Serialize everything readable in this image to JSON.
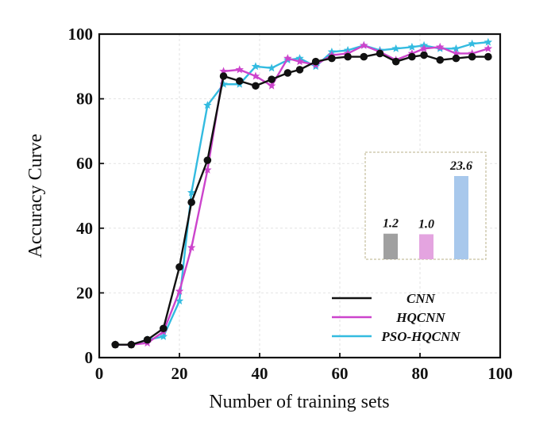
{
  "chart_data": {
    "type": "line",
    "title": "",
    "xlabel": "Number of training sets",
    "ylabel": "Accuracy Curve",
    "xlim": [
      0,
      100
    ],
    "ylim": [
      0,
      100
    ],
    "xticks": [
      0,
      20,
      40,
      60,
      80,
      100
    ],
    "yticks": [
      0,
      20,
      40,
      60,
      80,
      100
    ],
    "grid": true,
    "legend_position": "bottom-right",
    "series": [
      {
        "name": "CNN",
        "color": "#111111",
        "marker": "circle",
        "x": [
          4,
          8,
          12,
          16,
          20,
          23,
          27,
          31,
          35,
          39,
          43,
          47,
          50,
          54,
          58,
          62,
          66,
          70,
          74,
          78,
          81,
          85,
          89,
          93,
          97
        ],
        "y": [
          4,
          4,
          5.5,
          9,
          28,
          48,
          61,
          87,
          85.5,
          84,
          86,
          88,
          89,
          91.5,
          92.5,
          93,
          93,
          94,
          91.5,
          93,
          93.5,
          92,
          92.5,
          93,
          93
        ]
      },
      {
        "name": "HQCNN",
        "color": "#cc44cc",
        "marker": "star",
        "x": [
          4,
          8,
          12,
          16,
          20,
          23,
          27,
          31,
          35,
          39,
          43,
          47,
          50,
          54,
          58,
          62,
          66,
          70,
          74,
          78,
          81,
          85,
          89,
          93,
          97
        ],
        "y": [
          4,
          4,
          4.5,
          8,
          20.5,
          34,
          58,
          88.5,
          89,
          87,
          84,
          92.5,
          91.5,
          90.5,
          93.5,
          94,
          96.5,
          94.5,
          92,
          94,
          95.5,
          96,
          94,
          94,
          95.5
        ]
      },
      {
        "name": "PSO-HQCNN",
        "color": "#33bbe0",
        "marker": "star",
        "x": [
          4,
          8,
          12,
          16,
          20,
          23,
          27,
          31,
          35,
          39,
          43,
          47,
          50,
          54,
          58,
          62,
          66,
          70,
          74,
          78,
          81,
          85,
          89,
          93,
          97
        ],
        "y": [
          4,
          4,
          5.5,
          6.5,
          17.5,
          51,
          78,
          84.5,
          84.5,
          90,
          89.5,
          92,
          92.5,
          90,
          94.5,
          95,
          96.5,
          95,
          95.5,
          96,
          96.5,
          95.5,
          95.5,
          97,
          97.5
        ]
      }
    ],
    "inset_bar": {
      "type": "bar",
      "categories": [
        "CNN",
        "HQCNN",
        "PSO-HQCNN"
      ],
      "values": [
        1.2,
        1.0,
        23.6
      ],
      "labels": [
        "1.2",
        "1.0",
        "23.6"
      ],
      "colors": [
        "#a0a0a0",
        "#e4a4e0",
        "#a8c8ec"
      ]
    }
  }
}
